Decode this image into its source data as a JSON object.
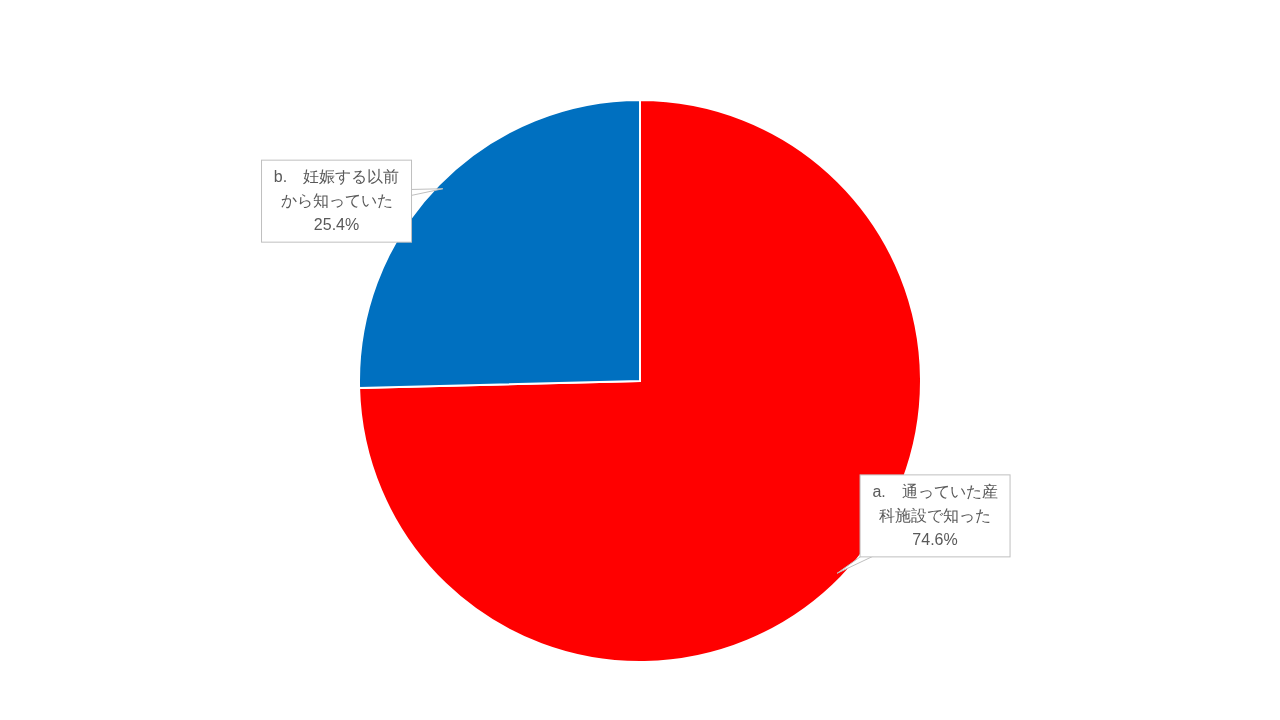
{
  "chart_data": {
    "type": "pie",
    "categories": [
      "a.　通っていた産科施設で知った",
      "b.　妊娠する以前から知っていた"
    ],
    "values": [
      74.6,
      25.4
    ],
    "colors": [
      "#ff0000",
      "#0070c0"
    ],
    "value_labels": [
      "74.6%",
      "25.4%"
    ]
  }
}
